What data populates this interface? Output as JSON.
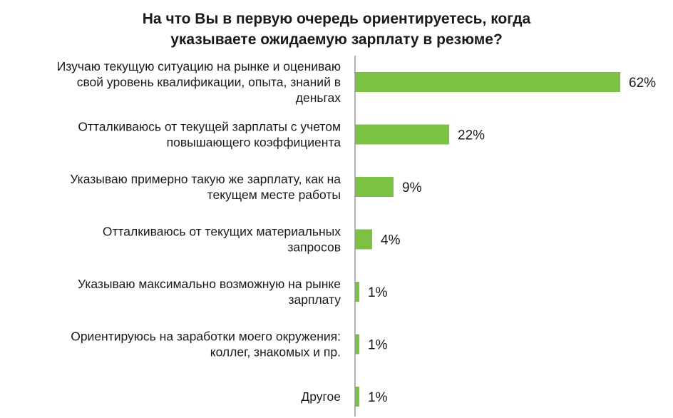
{
  "chart_data": {
    "type": "bar",
    "orientation": "horizontal",
    "title_lines": [
      "На что Вы в первую очередь ориентируетесь,  когда",
      "указываете ожидаемую  зарплату в резюме?"
    ],
    "categories": [
      [
        "Изучаю текущую ситуацию на рынке и оцениваю",
        "свой уровень квалификации, опыта, знаний в",
        "деньгах"
      ],
      [
        "Отталкиваюсь от текущей зарплаты с учетом",
        "повышающего коэффициента"
      ],
      [
        "Указываю примерно такую же зарплату, как на",
        "текущем месте работы"
      ],
      [
        "Отталкиваюсь от текущих материальных",
        "запросов"
      ],
      [
        "Указываю максимально возможную на рынке",
        "зарплату"
      ],
      [
        "Ориентируюсь на заработки моего окружения:",
        "коллег, знакомых и пр."
      ],
      [
        "Другое"
      ]
    ],
    "values": [
      62,
      22,
      9,
      4,
      1,
      1,
      1
    ],
    "value_labels": [
      "62%",
      "22%",
      "9%",
      "4%",
      "1%",
      "1%",
      "1%"
    ],
    "unit": "%",
    "xlim": [
      0,
      62
    ],
    "grid": false,
    "legend": "none",
    "bar_color": "#7cc242",
    "axis_color": "#999999"
  }
}
